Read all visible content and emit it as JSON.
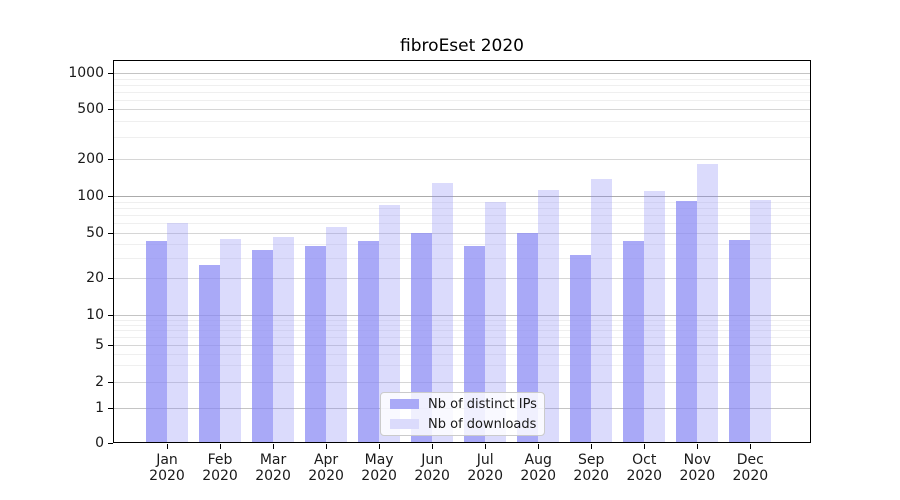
{
  "title": "fibroEset 2020",
  "chart_data": {
    "type": "bar",
    "title": "fibroEset 2020",
    "yscale": "symlog",
    "ylim": [
      0,
      1000
    ],
    "grid": "horizontal",
    "legend_position": "lower center",
    "yticks": [
      0,
      1,
      2,
      5,
      10,
      20,
      50,
      100,
      200,
      500,
      1000
    ],
    "categories": [
      {
        "label": "Jan",
        "year": "2020"
      },
      {
        "label": "Feb",
        "year": "2020"
      },
      {
        "label": "Mar",
        "year": "2020"
      },
      {
        "label": "Apr",
        "year": "2020"
      },
      {
        "label": "May",
        "year": "2020"
      },
      {
        "label": "Jun",
        "year": "2020"
      },
      {
        "label": "Jul",
        "year": "2020"
      },
      {
        "label": "Aug",
        "year": "2020"
      },
      {
        "label": "Sep",
        "year": "2020"
      },
      {
        "label": "Oct",
        "year": "2020"
      },
      {
        "label": "Nov",
        "year": "2020"
      },
      {
        "label": "Dec",
        "year": "2020"
      }
    ],
    "series": [
      {
        "name": "Nb of distinct IPs",
        "color": "#a9a9f7",
        "values": [
          42,
          26,
          35,
          38,
          42,
          50,
          38,
          50,
          32,
          42,
          91,
          43
        ]
      },
      {
        "name": "Nb of downloads",
        "color": "#dbdbfc",
        "values": [
          60,
          44,
          46,
          56,
          84,
          128,
          90,
          112,
          137,
          110,
          183,
          93
        ]
      }
    ]
  }
}
